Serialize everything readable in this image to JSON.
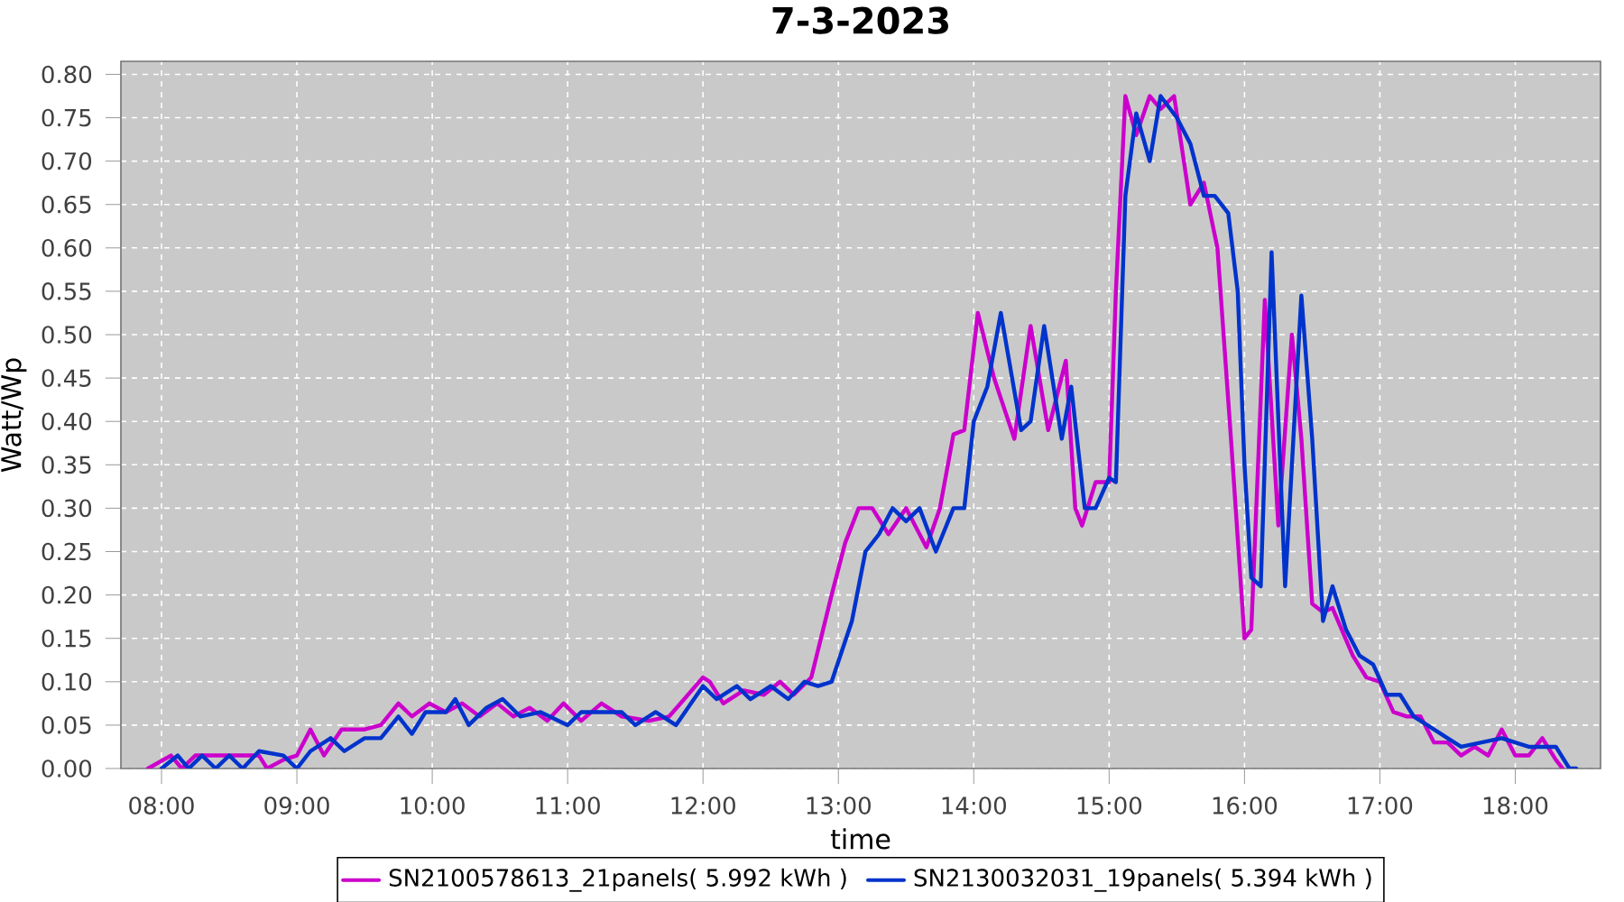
{
  "chart_data": {
    "type": "line",
    "title": "7-3-2023",
    "xlabel": "time",
    "ylabel": "Watt/Wp",
    "xlim": [
      7.7,
      18.63
    ],
    "ylim": [
      0,
      0.815
    ],
    "xticks": [
      {
        "value": 8,
        "label": "08:00"
      },
      {
        "value": 9,
        "label": "09:00"
      },
      {
        "value": 10,
        "label": "10:00"
      },
      {
        "value": 11,
        "label": "11:00"
      },
      {
        "value": 12,
        "label": "12:00"
      },
      {
        "value": 13,
        "label": "13:00"
      },
      {
        "value": 14,
        "label": "14:00"
      },
      {
        "value": 15,
        "label": "15:00"
      },
      {
        "value": 16,
        "label": "16:00"
      },
      {
        "value": 17,
        "label": "17:00"
      },
      {
        "value": 18,
        "label": "18:00"
      }
    ],
    "yticks": [
      {
        "value": 0,
        "label": "0.00"
      },
      {
        "value": 0.05,
        "label": "0.05"
      },
      {
        "value": 0.1,
        "label": "0.10"
      },
      {
        "value": 0.15,
        "label": "0.15"
      },
      {
        "value": 0.2,
        "label": "0.20"
      },
      {
        "value": 0.25,
        "label": "0.25"
      },
      {
        "value": 0.3,
        "label": "0.30"
      },
      {
        "value": 0.35,
        "label": "0.35"
      },
      {
        "value": 0.4,
        "label": "0.40"
      },
      {
        "value": 0.45,
        "label": "0.45"
      },
      {
        "value": 0.5,
        "label": "0.50"
      },
      {
        "value": 0.55,
        "label": "0.55"
      },
      {
        "value": 0.6,
        "label": "0.60"
      },
      {
        "value": 0.65,
        "label": "0.65"
      },
      {
        "value": 0.7,
        "label": "0.70"
      },
      {
        "value": 0.75,
        "label": "0.75"
      },
      {
        "value": 0.8,
        "label": "0.80"
      }
    ],
    "grid": true,
    "legend": "bottom",
    "marker": "none",
    "line_style": "solid",
    "series": [
      {
        "name": "SN2100578613_21panels( 5.992 kWh )",
        "color": "#cc00cc",
        "x": [
          7.9,
          8.07,
          8.15,
          8.25,
          8.5,
          8.72,
          8.78,
          8.9,
          9.0,
          9.1,
          9.2,
          9.33,
          9.5,
          9.62,
          9.75,
          9.85,
          9.98,
          10.1,
          10.22,
          10.35,
          10.48,
          10.6,
          10.72,
          10.85,
          10.97,
          11.1,
          11.25,
          11.4,
          11.6,
          11.75,
          12.0,
          12.05,
          12.15,
          12.3,
          12.45,
          12.57,
          12.67,
          12.8,
          12.95,
          13.05,
          13.15,
          13.25,
          13.37,
          13.5,
          13.65,
          13.75,
          13.85,
          13.93,
          14.03,
          14.15,
          14.3,
          14.42,
          14.55,
          14.68,
          14.75,
          14.8,
          14.9,
          15.0,
          15.05,
          15.12,
          15.2,
          15.3,
          15.38,
          15.48,
          15.6,
          15.7,
          15.8,
          15.9,
          16.0,
          16.05,
          16.15,
          16.25,
          16.35,
          16.42,
          16.5,
          16.58,
          16.65,
          16.8,
          16.9,
          17.0,
          17.1,
          17.2,
          17.3,
          17.4,
          17.5,
          17.6,
          17.7,
          17.8,
          17.9,
          18.0,
          18.1,
          18.2,
          18.3,
          18.35
        ],
        "values": [
          0,
          0.015,
          0,
          0.015,
          0.015,
          0.015,
          0,
          0.01,
          0.015,
          0.045,
          0.015,
          0.045,
          0.045,
          0.05,
          0.075,
          0.06,
          0.075,
          0.065,
          0.075,
          0.06,
          0.075,
          0.06,
          0.07,
          0.055,
          0.075,
          0.055,
          0.075,
          0.06,
          0.055,
          0.06,
          0.105,
          0.1,
          0.075,
          0.09,
          0.085,
          0.1,
          0.085,
          0.105,
          0.2,
          0.26,
          0.3,
          0.3,
          0.27,
          0.3,
          0.255,
          0.3,
          0.385,
          0.39,
          0.525,
          0.45,
          0.38,
          0.51,
          0.39,
          0.47,
          0.3,
          0.28,
          0.33,
          0.33,
          0.55,
          0.775,
          0.73,
          0.775,
          0.76,
          0.775,
          0.65,
          0.675,
          0.6,
          0.38,
          0.15,
          0.16,
          0.54,
          0.28,
          0.5,
          0.38,
          0.19,
          0.18,
          0.185,
          0.13,
          0.105,
          0.1,
          0.065,
          0.06,
          0.06,
          0.03,
          0.03,
          0.015,
          0.025,
          0.015,
          0.045,
          0.015,
          0.015,
          0.035,
          0.01,
          0
        ]
      },
      {
        "name": "SN2130032031_19panels( 5.394 kWh )",
        "color": "#0033cc",
        "x": [
          8.0,
          8.12,
          8.2,
          8.3,
          8.4,
          8.5,
          8.6,
          8.72,
          8.9,
          9.0,
          9.1,
          9.25,
          9.35,
          9.5,
          9.62,
          9.75,
          9.85,
          9.95,
          10.1,
          10.17,
          10.27,
          10.4,
          10.52,
          10.65,
          10.8,
          11.0,
          11.1,
          11.4,
          11.5,
          11.65,
          11.8,
          12.0,
          12.1,
          12.25,
          12.35,
          12.5,
          12.63,
          12.75,
          12.85,
          12.95,
          13.1,
          13.2,
          13.3,
          13.4,
          13.5,
          13.6,
          13.72,
          13.85,
          13.93,
          14.0,
          14.1,
          14.2,
          14.35,
          14.42,
          14.52,
          14.65,
          14.72,
          14.82,
          14.9,
          15.0,
          15.05,
          15.12,
          15.2,
          15.3,
          15.38,
          15.5,
          15.6,
          15.7,
          15.78,
          15.88,
          15.95,
          16.0,
          16.05,
          16.12,
          16.2,
          16.3,
          16.42,
          16.5,
          16.58,
          16.65,
          16.75,
          16.85,
          16.95,
          17.05,
          17.15,
          17.25,
          17.35,
          17.5,
          17.6,
          17.75,
          17.9,
          18.1,
          18.3,
          18.4,
          18.45
        ],
        "values": [
          0,
          0.015,
          0,
          0.015,
          0,
          0.015,
          0,
          0.02,
          0.015,
          0,
          0.02,
          0.035,
          0.02,
          0.035,
          0.035,
          0.06,
          0.04,
          0.065,
          0.065,
          0.08,
          0.05,
          0.07,
          0.08,
          0.06,
          0.065,
          0.05,
          0.065,
          0.065,
          0.05,
          0.065,
          0.05,
          0.095,
          0.08,
          0.095,
          0.08,
          0.095,
          0.08,
          0.1,
          0.095,
          0.1,
          0.17,
          0.25,
          0.27,
          0.3,
          0.285,
          0.3,
          0.25,
          0.3,
          0.3,
          0.4,
          0.44,
          0.525,
          0.39,
          0.4,
          0.51,
          0.38,
          0.44,
          0.3,
          0.3,
          0.335,
          0.33,
          0.66,
          0.755,
          0.7,
          0.775,
          0.75,
          0.72,
          0.66,
          0.66,
          0.64,
          0.55,
          0.35,
          0.22,
          0.21,
          0.595,
          0.21,
          0.545,
          0.38,
          0.17,
          0.21,
          0.16,
          0.13,
          0.12,
          0.085,
          0.085,
          0.06,
          0.05,
          0.035,
          0.025,
          0.03,
          0.035,
          0.025,
          0.025,
          0,
          0
        ]
      }
    ]
  }
}
